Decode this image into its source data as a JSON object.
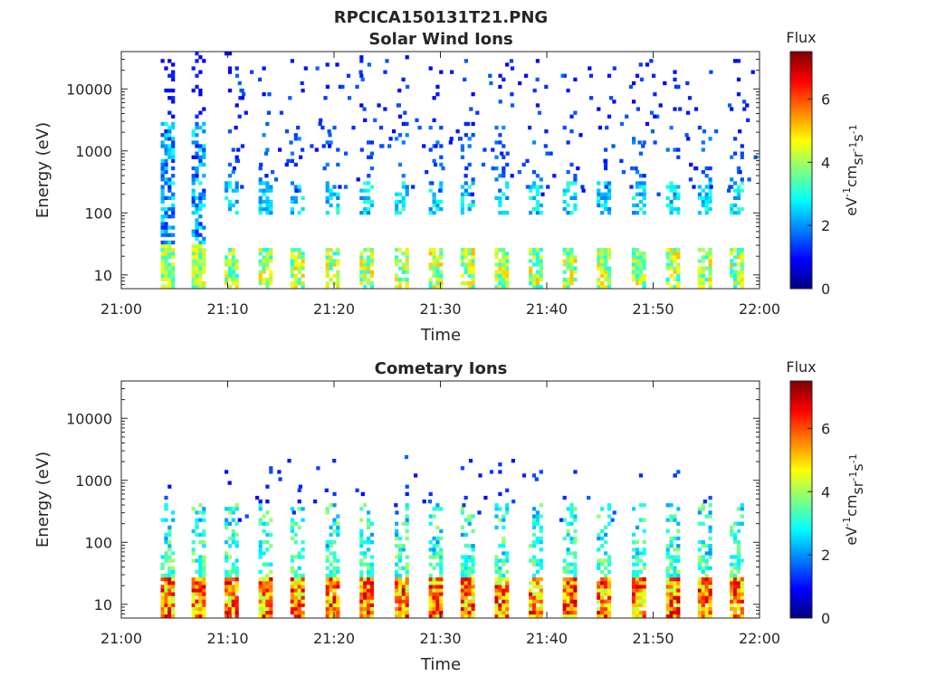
{
  "figure": {
    "main_title": "RPCICA150131T21.PNG"
  },
  "chart_data": [
    {
      "type": "heatmap",
      "title": "Solar Wind Ions",
      "xlabel": "Time",
      "ylabel": "Energy (eV)",
      "x_tick_labels": [
        "21:00",
        "21:10",
        "21:20",
        "21:30",
        "21:40",
        "21:50",
        "22:00"
      ],
      "x_ticks_minutes": [
        0,
        10,
        20,
        30,
        40,
        50,
        60
      ],
      "xlim_minutes": [
        0,
        60
      ],
      "y_scale": "log",
      "y_tick_labels": [
        "10",
        "100",
        "1000",
        "10000"
      ],
      "y_ticks": [
        10,
        100,
        1000,
        10000
      ],
      "ylim": [
        6,
        40000
      ],
      "colorbar": {
        "title": "Flux",
        "label": "eV-1cm-2sr-1s-1",
        "range": [
          0,
          7.5
        ],
        "tick_labels": [
          "0",
          "2",
          "4",
          "6"
        ],
        "ticks": [
          0,
          2,
          4,
          6
        ],
        "colormap": "jet"
      },
      "description_of_pattern": "Dense burst at 21:03-21:08 spanning 10-3000 eV; thereafter periodic bursts roughly every 3 minutes with a band at 100-300 eV (flux ~2-3), low-energy band at 10-30 eV (flux ~3-5) and sparse high-energy points (flux ~1)."
    },
    {
      "type": "heatmap",
      "title": "Cometary Ions",
      "xlabel": "Time",
      "ylabel": "Energy (eV)",
      "x_tick_labels": [
        "21:00",
        "21:10",
        "21:20",
        "21:30",
        "21:40",
        "21:50",
        "22:00"
      ],
      "x_ticks_minutes": [
        0,
        10,
        20,
        30,
        40,
        50,
        60
      ],
      "xlim_minutes": [
        0,
        60
      ],
      "y_scale": "log",
      "y_tick_labels": [
        "10",
        "100",
        "1000",
        "10000"
      ],
      "y_ticks": [
        10,
        100,
        1000,
        10000
      ],
      "ylim": [
        6,
        40000
      ],
      "colorbar": {
        "title": "Flux",
        "label": "eV-1cm-2sr-1s-1",
        "range": [
          0,
          7.5
        ],
        "tick_labels": [
          "0",
          "2",
          "4",
          "6"
        ],
        "ticks": [
          0,
          2,
          4,
          6
        ],
        "colormap": "jet"
      },
      "description_of_pattern": "Periodic bursts every ~3 minutes; strongest flux (~5-7) at 8-25 eV, plumes of flux ~2-4 reaching 100-500 eV, scattered points up to ~2000 eV."
    }
  ],
  "burst_times_minutes": [
    4.3,
    7.2,
    10.3,
    13.5,
    16.5,
    19.8,
    23.0,
    26.3,
    29.5,
    32.5,
    35.7,
    38.9,
    42.1,
    45.3,
    48.6,
    51.8,
    54.8,
    57.8
  ]
}
